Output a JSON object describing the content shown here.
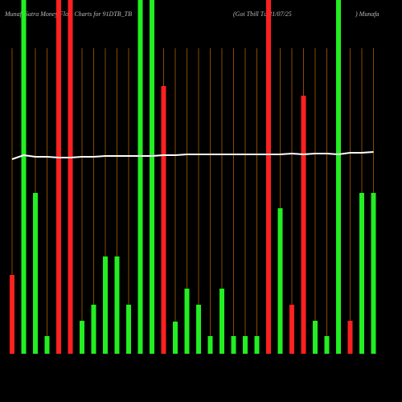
{
  "chart_data": {
    "type": "bar",
    "title": "MunafaSutra  Money Flow Charts for 91DTB_TB",
    "subtitle": "(Goi  Tbill  Td-11/07/25",
    "source": ") Munafa",
    "categories": [
      null,
      null,
      null,
      null,
      null,
      null,
      null,
      null,
      null,
      null,
      null,
      null,
      null,
      null,
      null,
      null,
      null,
      null,
      null,
      null,
      null,
      null,
      null,
      null,
      null,
      null,
      null,
      null,
      null,
      null,
      null,
      null
    ],
    "values": [
      98,
      440,
      200,
      22,
      440,
      440,
      41,
      61,
      121,
      121,
      61,
      440,
      440,
      333,
      40,
      81,
      61,
      22,
      81,
      22,
      22,
      22,
      440,
      181,
      61,
      321,
      41,
      22,
      440,
      41,
      200,
      200
    ],
    "colors": [
      "#ff2020",
      "#22ee22",
      "#22ee22",
      "#22ee22",
      "#ff2020",
      "#ff2020",
      "#22ee22",
      "#22ee22",
      "#22ee22",
      "#22ee22",
      "#22ee22",
      "#22ee22",
      "#22ee22",
      "#ff2020",
      "#22ee22",
      "#22ee22",
      "#22ee22",
      "#22ee22",
      "#22ee22",
      "#22ee22",
      "#22ee22",
      "#22ee22",
      "#ff2020",
      "#22ee22",
      "#ff2020",
      "#ff2020",
      "#22ee22",
      "#22ee22",
      "#22ee22",
      "#ff2020",
      "#22ee22",
      "#22ee22"
    ],
    "line": {
      "color": "#ffffff",
      "values": [
        242,
        247,
        245,
        245,
        244,
        244,
        245,
        245,
        246,
        246,
        246,
        246,
        246,
        247,
        247,
        248,
        248,
        248,
        248,
        248,
        248,
        248,
        248,
        248,
        249,
        248,
        249,
        249,
        248,
        250,
        250,
        251
      ]
    },
    "ylim": [
      0,
      440
    ],
    "grid_color": "#8a4a00"
  }
}
